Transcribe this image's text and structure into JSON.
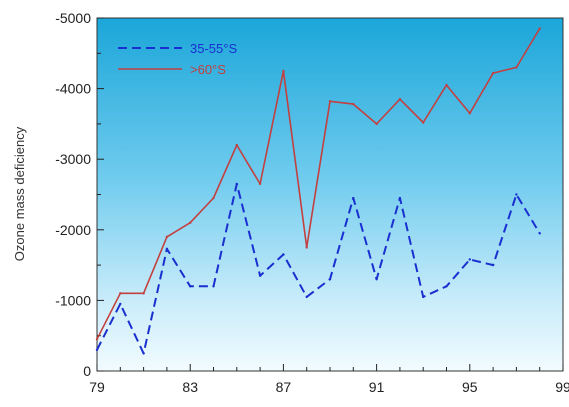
{
  "chart_data": {
    "type": "line",
    "title": "",
    "xlabel": "",
    "ylabel": "Ozone mass deficiency",
    "xlim": [
      79,
      99
    ],
    "ylim": [
      0,
      -5000
    ],
    "x_ticks": [
      79,
      83,
      87,
      91,
      95,
      99
    ],
    "y_ticks": [
      0,
      -1000,
      -2000,
      -3000,
      -4000,
      -5000
    ],
    "x_tick_labels": [
      "79",
      "83",
      "87",
      "91",
      "95",
      "99"
    ],
    "y_tick_labels": [
      "0",
      "-1000",
      "-2000",
      "-3000",
      "-4000",
      "-5000"
    ],
    "grid": false,
    "legend_position": "top-left",
    "series": [
      {
        "name": "35-55°S",
        "style": "dashed",
        "color": "#1a2fd0",
        "x": [
          79,
          80,
          81,
          82,
          83,
          84,
          85,
          86,
          87,
          88,
          89,
          90,
          91,
          92,
          93,
          94,
          95,
          96,
          97,
          98
        ],
        "y": [
          -300,
          -950,
          -250,
          -1730,
          -1200,
          -1200,
          -2650,
          -1350,
          -1650,
          -1050,
          -1300,
          -2450,
          -1300,
          -2450,
          -1050,
          -1200,
          -1580,
          -1500,
          -2500,
          -1950
        ]
      },
      {
        "name": ">60°S",
        "style": "solid",
        "color": "#c24040",
        "x": [
          79,
          80,
          81,
          82,
          83,
          84,
          85,
          86,
          87,
          88,
          89,
          90,
          91,
          92,
          93,
          94,
          95,
          96,
          97,
          98
        ],
        "y": [
          -450,
          -1100,
          -1100,
          -1900,
          -2100,
          -2450,
          -3200,
          -2650,
          -4250,
          -1750,
          -3820,
          -3780,
          -3500,
          -3850,
          -3520,
          -4050,
          -3650,
          -4220,
          -4300,
          -4850
        ]
      }
    ]
  }
}
